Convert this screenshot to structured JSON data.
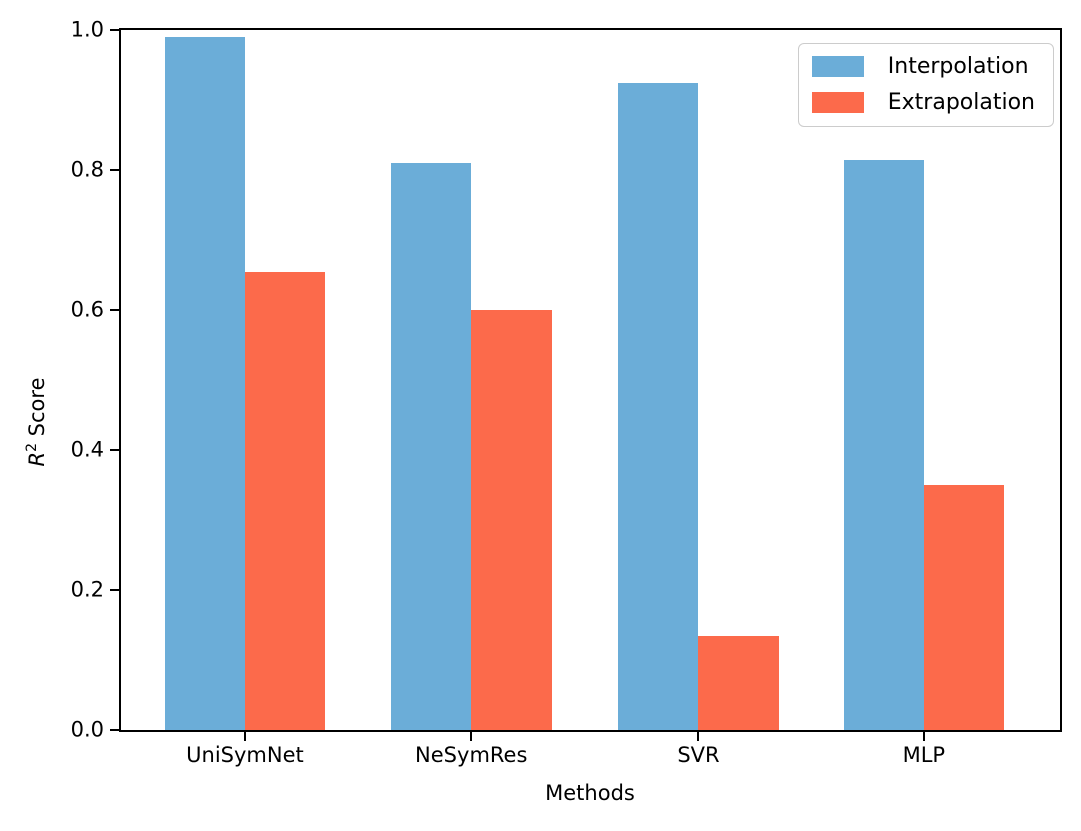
{
  "figure": {
    "background": "#ffffff",
    "axis_color": "#000000"
  },
  "chart_data": {
    "type": "bar",
    "title": "",
    "xlabel": "Methods",
    "ylabel": "R² Score",
    "ylabel_parts": {
      "variable": "R",
      "superscript": "2",
      "rest": " Score"
    },
    "categories": [
      "UniSymNet",
      "NeSymRes",
      "SVR",
      "MLP"
    ],
    "series": [
      {
        "name": "Interpolation",
        "color": "#6BADD8",
        "values": [
          0.99,
          0.81,
          0.925,
          0.815
        ]
      },
      {
        "name": "Extrapolation",
        "color": "#FC6A4B",
        "values": [
          0.655,
          0.6,
          0.135,
          0.35
        ]
      }
    ],
    "ylim": [
      0.0,
      1.0
    ],
    "yticks": [
      "0.0",
      "0.2",
      "0.4",
      "0.6",
      "0.8",
      "1.0"
    ],
    "grid": false,
    "legend": {
      "position": "upper right",
      "border_color": "#cccccc",
      "entries": [
        "Interpolation",
        "Extrapolation"
      ]
    },
    "layout": {
      "group_centers_pct": [
        13.2,
        37.3,
        61.5,
        85.5
      ],
      "bar_width_pct": 8.55
    }
  }
}
